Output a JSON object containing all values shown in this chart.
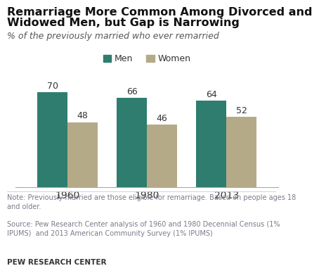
{
  "title_line1": "Remarriage More Common Among Divorced and",
  "title_line2": "Widowed Men, but Gap is Narrowing",
  "subtitle": "% of the previously married who ever remarried",
  "categories": [
    "1960",
    "1980",
    "2013"
  ],
  "men_values": [
    70,
    66,
    64
  ],
  "women_values": [
    48,
    46,
    52
  ],
  "men_color": "#2e7d6e",
  "women_color": "#b5aa87",
  "title_fontsize": 11.5,
  "subtitle_fontsize": 9,
  "bar_width": 0.38,
  "ylim": [
    0,
    80
  ],
  "note": "Note: Previously married are those eligible for remarriage. Based on people ages 18\nand older.",
  "source": "Source: Pew Research Center analysis of 1960 and 1980 Decennial Census (1%\nIPUMS)  and 2013 American Community Survey (1% IPUMS)",
  "branding": "PEW RESEARCH CENTER",
  "legend_labels": [
    "Men",
    "Women"
  ],
  "background_color": "#ffffff",
  "footer_color": "#7a7a8c",
  "branding_color": "#333333"
}
